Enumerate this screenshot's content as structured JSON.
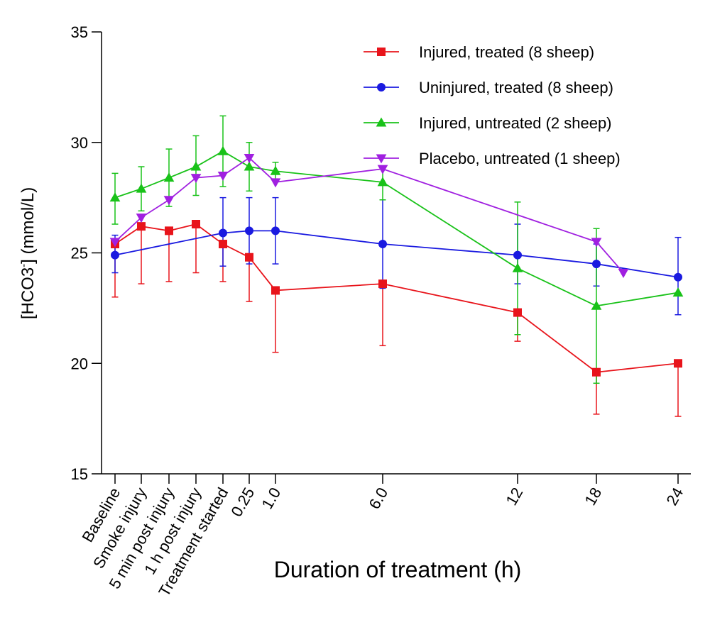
{
  "chart_data": {
    "type": "line",
    "xlabel": "Duration of treatment (h)",
    "ylabel": "[HCO3⁻] (mmol/L)",
    "ylim": [
      15,
      35
    ],
    "yticks": [
      "15",
      "20",
      "25",
      "30",
      "35"
    ],
    "categories": [
      "Baseline",
      "Smoke injury",
      "5 min post injury",
      "1 h post injury",
      "Treatment started",
      "0.25",
      "1.0",
      "6.0",
      "12",
      "18",
      "24"
    ],
    "grid": false,
    "legend_position": "top-right",
    "series": [
      {
        "name": "Injured, treated (8 sheep)",
        "color": "#e8141b",
        "marker": "square",
        "points": [
          {
            "x": "Baseline",
            "y": 25.4,
            "err_low": 23.0,
            "err_high": 25.4
          },
          {
            "x": "Smoke injury",
            "y": 26.2,
            "err_low": 23.6,
            "err_high": 26.2
          },
          {
            "x": "5 min post injury",
            "y": 26.0,
            "err_low": 23.7,
            "err_high": 26.0
          },
          {
            "x": "1 h post injury",
            "y": 26.3,
            "err_low": 24.1,
            "err_high": 26.3
          },
          {
            "x": "Treatment started",
            "y": 25.4,
            "err_low": 23.7,
            "err_high": 25.4
          },
          {
            "x": "0.25",
            "y": 24.8,
            "err_low": 22.8,
            "err_high": 24.8
          },
          {
            "x": "1.0",
            "y": 23.3,
            "err_low": 20.5,
            "err_high": 23.3
          },
          {
            "x": "6.0",
            "y": 23.6,
            "err_low": 20.8,
            "err_high": 23.6
          },
          {
            "x": "12",
            "y": 22.3,
            "err_low": 21.0,
            "err_high": 22.3
          },
          {
            "x": "18",
            "y": 19.6,
            "err_low": 17.7,
            "err_high": 19.6
          },
          {
            "x": "24",
            "y": 20.0,
            "err_low": 17.6,
            "err_high": 20.0
          }
        ]
      },
      {
        "name": "Uninjured, treated (8 sheep)",
        "color": "#1a1ae0",
        "marker": "circle",
        "points": [
          {
            "x": "Baseline",
            "y": 24.9,
            "err_low": 24.1,
            "err_high": 25.8
          },
          {
            "x": "Treatment started",
            "y": 25.9,
            "err_low": 24.4,
            "err_high": 27.5
          },
          {
            "x": "0.25",
            "y": 26.0,
            "err_low": 24.5,
            "err_high": 27.5
          },
          {
            "x": "1.0",
            "y": 26.0,
            "err_low": 24.5,
            "err_high": 27.5
          },
          {
            "x": "6.0",
            "y": 25.4,
            "err_low": 23.4,
            "err_high": 27.4
          },
          {
            "x": "12",
            "y": 24.9,
            "err_low": 23.6,
            "err_high": 26.3
          },
          {
            "x": "18",
            "y": 24.5,
            "err_low": 23.5,
            "err_high": 25.4
          },
          {
            "x": "24",
            "y": 23.9,
            "err_low": 22.2,
            "err_high": 25.7
          }
        ]
      },
      {
        "name": "Injured, untreated (2 sheep)",
        "color": "#19c219",
        "marker": "triangle-up",
        "points": [
          {
            "x": "Baseline",
            "y": 27.5,
            "err_low": 26.3,
            "err_high": 28.6
          },
          {
            "x": "Smoke injury",
            "y": 27.9,
            "err_low": 26.9,
            "err_high": 28.9
          },
          {
            "x": "5 min post injury",
            "y": 28.4,
            "err_low": 27.1,
            "err_high": 29.7
          },
          {
            "x": "1 h post injury",
            "y": 28.9,
            "err_low": 27.6,
            "err_high": 30.3
          },
          {
            "x": "Treatment started",
            "y": 29.6,
            "err_low": 28.0,
            "err_high": 31.2
          },
          {
            "x": "0.25",
            "y": 28.9,
            "err_low": 27.8,
            "err_high": 30.0
          },
          {
            "x": "1.0",
            "y": 28.7,
            "err_low": 28.3,
            "err_high": 29.1
          },
          {
            "x": "6.0",
            "y": 28.2,
            "err_low": 27.4,
            "err_high": 28.9
          },
          {
            "x": "12",
            "y": 24.3,
            "err_low": 21.3,
            "err_high": 27.3
          },
          {
            "x": "18",
            "y": 22.6,
            "err_low": 19.1,
            "err_high": 26.1
          },
          {
            "x": "24",
            "y": 23.2,
            "err_low": 23.2,
            "err_high": 23.2
          }
        ]
      },
      {
        "name": "Placebo, untreated (1 sheep)",
        "color": "#a020e0",
        "marker": "triangle-down",
        "points": [
          {
            "x": "Baseline",
            "y": 25.5
          },
          {
            "x": "Smoke injury",
            "y": 26.6
          },
          {
            "x": "5 min post injury",
            "y": 27.4
          },
          {
            "x": "1 h post injury",
            "y": 28.4
          },
          {
            "x": "Treatment started",
            "y": 28.5
          },
          {
            "x": "0.25",
            "y": 29.3
          },
          {
            "x": "1.0",
            "y": 28.2
          },
          {
            "x": "6.0",
            "y": 28.8
          },
          {
            "x": "18",
            "y": 25.5
          },
          {
            "x": "20",
            "y": 24.1
          }
        ]
      }
    ]
  }
}
